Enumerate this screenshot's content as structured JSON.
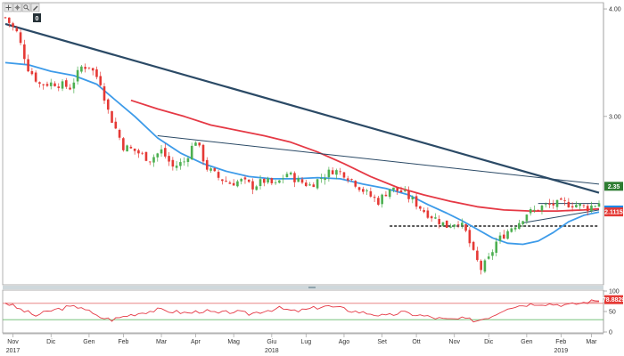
{
  "toolbar": {
    "icons": [
      "pan-icon",
      "crosshair-icon",
      "zoom-icon",
      "edit-icon"
    ],
    "counter": "0"
  },
  "colors": {
    "bull": "#4caf50",
    "bear": "#e53935",
    "ma_short": "#3d9be9",
    "ma_long": "#e53945",
    "trendline": "#2b4a66",
    "rsi": "#e53945",
    "rsi_upper": "#e57373",
    "rsi_lower": "#66bb6a",
    "badge_green": "#2e7d32",
    "badge_blue": "#1e88e5",
    "badge_red": "#e53935"
  },
  "chart_data": [
    {
      "type": "candlestick",
      "title": "",
      "xlabel": "",
      "ylabel": "",
      "x_ticks": [
        "Nov",
        "Dic",
        "Gen",
        "Feb",
        "Mar",
        "Apr",
        "Mag",
        "Giu",
        "Lug",
        "Ago",
        "Set",
        "Ott",
        "Nov",
        "Dic",
        "Gen",
        "Feb",
        "Mar"
      ],
      "years": [
        "2017",
        "2018",
        "2019"
      ],
      "y_ticks": [
        "4.00",
        "3.00"
      ],
      "ylim": [
        1.45,
        4.05
      ],
      "grid": false,
      "price_path": [
        [
          0,
          3.92
        ],
        [
          3,
          3.78
        ],
        [
          6,
          3.45
        ],
        [
          9,
          3.3
        ],
        [
          13,
          3.31
        ],
        [
          17,
          3.27
        ],
        [
          20,
          3.46
        ],
        [
          22,
          3.47
        ],
        [
          25,
          3.32
        ],
        [
          27,
          3.05
        ],
        [
          31,
          2.72
        ],
        [
          34,
          2.68
        ],
        [
          38,
          2.6
        ],
        [
          41,
          2.68
        ],
        [
          44,
          2.53
        ],
        [
          47,
          2.58
        ],
        [
          50,
          2.78
        ],
        [
          53,
          2.52
        ],
        [
          56,
          2.43
        ],
        [
          59,
          2.38
        ],
        [
          62,
          2.4
        ],
        [
          65,
          2.35
        ],
        [
          68,
          2.4
        ],
        [
          71,
          2.36
        ],
        [
          74,
          2.47
        ],
        [
          77,
          2.4
        ],
        [
          80,
          2.36
        ],
        [
          83,
          2.43
        ],
        [
          86,
          2.5
        ],
        [
          89,
          2.47
        ],
        [
          92,
          2.38
        ],
        [
          95,
          2.28
        ],
        [
          98,
          2.21
        ],
        [
          101,
          2.33
        ],
        [
          104,
          2.3
        ],
        [
          107,
          2.22
        ],
        [
          110,
          2.12
        ],
        [
          113,
          2.05
        ],
        [
          116,
          1.98
        ],
        [
          119,
          2.03
        ],
        [
          121,
          1.92
        ],
        [
          123,
          1.72
        ],
        [
          125,
          1.58
        ],
        [
          127,
          1.67
        ],
        [
          129,
          1.83
        ],
        [
          131,
          1.9
        ],
        [
          133,
          1.97
        ],
        [
          135,
          2.02
        ],
        [
          137,
          2.1
        ],
        [
          139,
          2.12
        ],
        [
          141,
          2.16
        ],
        [
          144,
          2.18
        ],
        [
          147,
          2.19
        ],
        [
          150,
          2.18
        ],
        [
          153,
          2.15
        ],
        [
          156,
          2.2
        ]
      ],
      "series": [
        {
          "name": "",
          "type": "line",
          "color": "#3d9be9",
          "points": [
            [
              0,
              3.5
            ],
            [
              6,
              3.48
            ],
            [
              12,
              3.42
            ],
            [
              18,
              3.38
            ],
            [
              24,
              3.3
            ],
            [
              28,
              3.18
            ],
            [
              34,
              3.0
            ],
            [
              40,
              2.8
            ],
            [
              46,
              2.66
            ],
            [
              52,
              2.56
            ],
            [
              58,
              2.49
            ],
            [
              64,
              2.44
            ],
            [
              70,
              2.42
            ],
            [
              76,
              2.42
            ],
            [
              82,
              2.43
            ],
            [
              88,
              2.42
            ],
            [
              94,
              2.37
            ],
            [
              100,
              2.33
            ],
            [
              106,
              2.27
            ],
            [
              111,
              2.18
            ],
            [
              116,
              2.1
            ],
            [
              120,
              2.03
            ],
            [
              124,
              1.95
            ],
            [
              128,
              1.87
            ],
            [
              132,
              1.82
            ],
            [
              136,
              1.81
            ],
            [
              140,
              1.84
            ],
            [
              144,
              1.92
            ],
            [
              148,
              2.02
            ],
            [
              152,
              2.08
            ],
            [
              156,
              2.11
            ]
          ]
        },
        {
          "name": "",
          "type": "line",
          "color": "#e53945",
          "points": [
            [
              33,
              3.15
            ],
            [
              40,
              3.07
            ],
            [
              47,
              3.0
            ],
            [
              54,
              2.92
            ],
            [
              61,
              2.87
            ],
            [
              68,
              2.82
            ],
            [
              75,
              2.76
            ],
            [
              82,
              2.67
            ],
            [
              89,
              2.56
            ],
            [
              96,
              2.44
            ],
            [
              103,
              2.34
            ],
            [
              110,
              2.27
            ],
            [
              117,
              2.21
            ],
            [
              124,
              2.16
            ],
            [
              131,
              2.13
            ],
            [
              138,
              2.12
            ],
            [
              145,
              2.12
            ],
            [
              152,
              2.13
            ],
            [
              156,
              2.14
            ]
          ]
        }
      ],
      "trendlines": [
        {
          "points": [
            [
              0,
              3.86
            ],
            [
              156,
              2.29
            ]
          ],
          "style": "solid",
          "weight": "heavy"
        },
        {
          "points": [
            [
              40,
              2.82
            ],
            [
              156,
              2.37
            ]
          ],
          "style": "solid",
          "weight": "thin"
        },
        {
          "points": [
            [
              136,
              2.01
            ],
            [
              156,
              2.13
            ]
          ],
          "style": "solid",
          "weight": "thin"
        },
        {
          "points": [
            [
              140,
              2.19
            ],
            [
              156,
              2.19
            ]
          ],
          "style": "solid",
          "weight": "thin"
        },
        {
          "points": [
            [
              101,
              1.98
            ],
            [
              156,
              1.98
            ]
          ],
          "style": "dashed",
          "weight": "medium"
        }
      ],
      "badges": [
        {
          "value": "2.35",
          "color": "#2e7d32",
          "price": 2.35
        },
        {
          "value": "2.1294",
          "color": "#1e88e5",
          "price": 2.1294
        },
        {
          "value": "2.1115",
          "color": "#e53935",
          "price": 2.1115
        }
      ]
    },
    {
      "type": "line",
      "title": "",
      "xlabel": "",
      "ylabel": "",
      "y_ticks": [
        "100",
        "50",
        "0"
      ],
      "ylim": [
        0,
        100
      ],
      "levels": [
        70,
        30
      ],
      "series": [
        {
          "name": "",
          "color": "#e53945",
          "points": [
            [
              0,
              72
            ],
            [
              4,
              55
            ],
            [
              8,
              40
            ],
            [
              12,
              52
            ],
            [
              16,
              60
            ],
            [
              20,
              62
            ],
            [
              24,
              38
            ],
            [
              28,
              30
            ],
            [
              32,
              40
            ],
            [
              36,
              48
            ],
            [
              40,
              54
            ],
            [
              44,
              50
            ],
            [
              48,
              46
            ],
            [
              52,
              52
            ],
            [
              56,
              45
            ],
            [
              60,
              50
            ],
            [
              64,
              44
            ],
            [
              68,
              52
            ],
            [
              72,
              58
            ],
            [
              76,
              50
            ],
            [
              80,
              56
            ],
            [
              84,
              64
            ],
            [
              88,
              58
            ],
            [
              92,
              50
            ],
            [
              96,
              45
            ],
            [
              100,
              38
            ],
            [
              104,
              48
            ],
            [
              108,
              42
            ],
            [
              112,
              36
            ],
            [
              116,
              30
            ],
            [
              120,
              32
            ],
            [
              124,
              28
            ],
            [
              128,
              40
            ],
            [
              132,
              60
            ],
            [
              136,
              66
            ],
            [
              140,
              70
            ],
            [
              144,
              68
            ],
            [
              148,
              66
            ],
            [
              152,
              72
            ],
            [
              156,
              78
            ]
          ]
        }
      ],
      "badges": [
        {
          "value": "78.8829",
          "color": "#e53935",
          "level": 78.88
        }
      ]
    }
  ]
}
